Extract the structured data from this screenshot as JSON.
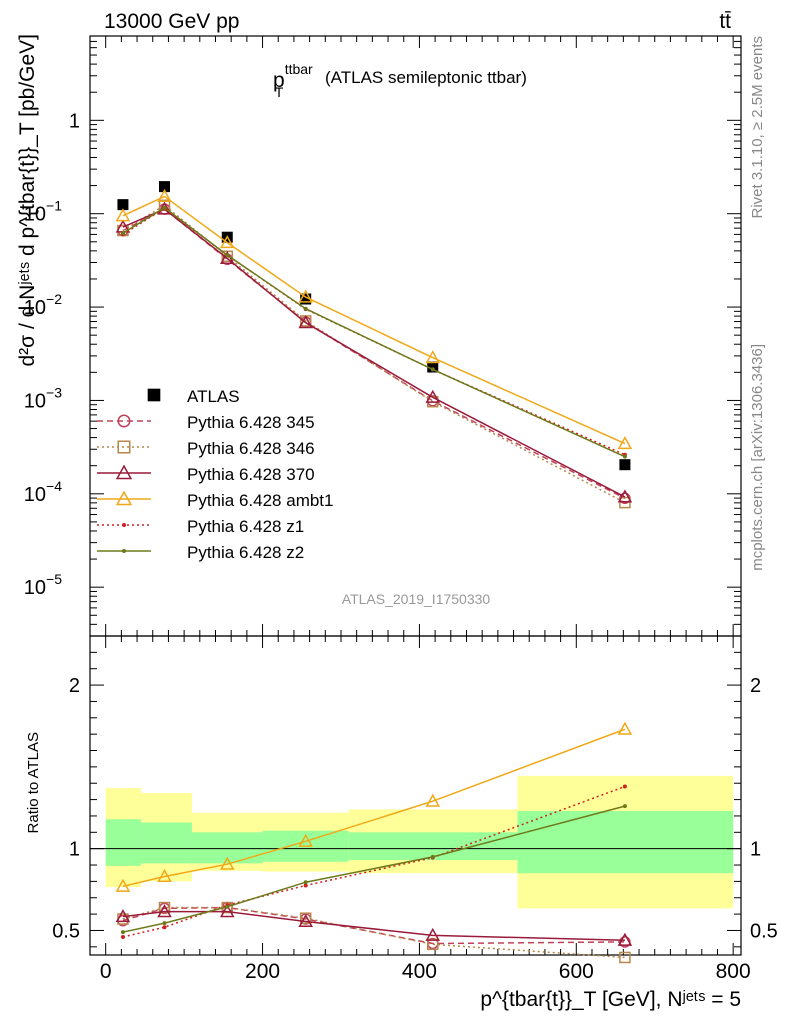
{
  "header": {
    "energy_label": "13000 GeV pp",
    "process_label": "tt̄"
  },
  "side_labels": {
    "rivet": "Rivet 3.1.10, ≥ 2.5M events",
    "mcplots": "mcplots.cern.ch [arXiv:1306.3436]"
  },
  "main_panel": {
    "title_main": "p",
    "title_sup": "ttbar",
    "title_sub": "T",
    "title_suffix": "(ATLAS semileptonic ttbar)",
    "analysis_id": "ATLAS_2019_I1750330",
    "ylabel": "d²σ / d Nʲᵉᵗˢ d p^{tbar{t}}_T [pb/GeV]"
  },
  "ratio_panel": {
    "ylabel": "Ratio to ATLAS"
  },
  "xaxis_label": "p^{tbar{t}}_T [GeV], Nʲᵉᵗˢ = 5",
  "colors": {
    "data": "#000000",
    "p345": "#c0405a",
    "p346": "#b8864a",
    "p370": "#9a1a3a",
    "ambt1": "#f0a818",
    "z1": "#d02020",
    "z2": "#6e7a1a",
    "band_inner": "#99ff99",
    "band_outer": "#ffff99"
  },
  "chart_data": [
    {
      "type": "scatter",
      "title": "p_T^ttbar (ATLAS semileptonic ttbar)",
      "xlabel": "p_T^{tbar{t}} [GeV], N^jets = 5",
      "ylabel": "d²σ / d N^jets d p_T^{tbar{t}} [pb/GeV]",
      "yscale": "log",
      "xlim": [
        -20,
        810
      ],
      "ylim": [
        3e-06,
        8
      ],
      "bin_edges": [
        0,
        45,
        110,
        200,
        310,
        525,
        800
      ],
      "x": [
        22,
        75,
        155,
        255,
        417,
        662
      ],
      "legend_position": "middle-left",
      "series": [
        {
          "name": "ATLAS",
          "marker": "filled-square",
          "values": [
            0.125,
            0.195,
            0.056,
            0.0122,
            0.00228,
            0.000205
          ]
        },
        {
          "name": "Pythia 6.428 345",
          "marker": "open-circle",
          "style": "dashed",
          "values": [
            0.066,
            0.112,
            0.0325,
            0.0069,
            0.00099,
            8.95e-05
          ]
        },
        {
          "name": "Pythia 6.428 346",
          "marker": "open-square",
          "style": "dotted",
          "values": [
            0.066,
            0.123,
            0.035,
            0.0071,
            0.00097,
            8.05e-05
          ]
        },
        {
          "name": "Pythia 6.428 370",
          "marker": "open-triangle",
          "style": "solid",
          "values": [
            0.072,
            0.112,
            0.0332,
            0.0068,
            0.00108,
            9.25e-05
          ]
        },
        {
          "name": "Pythia 6.428 ambt1",
          "marker": "open-triangle",
          "style": "solid",
          "values": [
            0.095,
            0.153,
            0.049,
            0.0128,
            0.00287,
            0.000345
          ]
        },
        {
          "name": "Pythia 6.428 z1",
          "marker": "small-dot",
          "style": "dotted",
          "values": [
            0.06,
            0.114,
            0.036,
            0.0095,
            0.00215,
            0.000262
          ]
        },
        {
          "name": "Pythia 6.428 z2",
          "marker": "small-dot",
          "style": "solid",
          "values": [
            0.062,
            0.116,
            0.036,
            0.0096,
            0.00215,
            0.00025
          ]
        }
      ]
    },
    {
      "type": "line",
      "ylabel": "Ratio to ATLAS",
      "xlim": [
        -20,
        810
      ],
      "ylim": [
        0.35,
        2.3
      ],
      "reference_line": 1,
      "bands": [
        {
          "x0": 0,
          "x1": 45,
          "inner": [
            0.895,
            1.18
          ],
          "outer": [
            0.765,
            1.37
          ]
        },
        {
          "x0": 45,
          "x1": 110,
          "inner": [
            0.91,
            1.16
          ],
          "outer": [
            0.8,
            1.34
          ]
        },
        {
          "x0": 110,
          "x1": 200,
          "inner": [
            0.91,
            1.1
          ],
          "outer": [
            0.865,
            1.22
          ]
        },
        {
          "x0": 200,
          "x1": 310,
          "inner": [
            0.92,
            1.11
          ],
          "outer": [
            0.86,
            1.22
          ]
        },
        {
          "x0": 310,
          "x1": 525,
          "inner": [
            0.93,
            1.1
          ],
          "outer": [
            0.85,
            1.24
          ]
        },
        {
          "x0": 525,
          "x1": 800,
          "inner": [
            0.85,
            1.23
          ],
          "outer": [
            0.635,
            1.445
          ]
        }
      ],
      "x": [
        22,
        75,
        155,
        255,
        417,
        662
      ],
      "series": [
        {
          "name": "Pythia 6.428 345",
          "values": [
            0.56,
            0.635,
            0.64,
            0.57,
            0.42,
            0.43
          ]
        },
        {
          "name": "Pythia 6.428 346",
          "values": [
            0.57,
            0.64,
            0.64,
            0.575,
            0.415,
            0.335
          ]
        },
        {
          "name": "Pythia 6.428 370",
          "values": [
            0.585,
            0.615,
            0.615,
            0.555,
            0.47,
            0.44
          ]
        },
        {
          "name": "Pythia 6.428 ambt1",
          "values": [
            0.77,
            0.83,
            0.905,
            1.045,
            1.29,
            1.73
          ]
        },
        {
          "name": "Pythia 6.428 z1",
          "values": [
            0.46,
            0.52,
            0.655,
            0.775,
            0.945,
            1.38
          ]
        },
        {
          "name": "Pythia 6.428 z2",
          "values": [
            0.49,
            0.545,
            0.645,
            0.795,
            0.95,
            1.26
          ]
        }
      ]
    }
  ],
  "axes": {
    "x_ticks": [
      0,
      200,
      400,
      600,
      800
    ],
    "main_y_ticks": [
      {
        "v": 1,
        "base": "1",
        "exp": ""
      },
      {
        "v": 0.1,
        "base": "10",
        "exp": "−1"
      },
      {
        "v": 0.01,
        "base": "10",
        "exp": "−2"
      },
      {
        "v": 0.001,
        "base": "10",
        "exp": "−3"
      },
      {
        "v": 0.0001,
        "base": "10",
        "exp": "−4"
      },
      {
        "v": 1e-05,
        "base": "10",
        "exp": "−5"
      }
    ],
    "ratio_y_ticks": [
      0.5,
      1,
      2
    ]
  }
}
